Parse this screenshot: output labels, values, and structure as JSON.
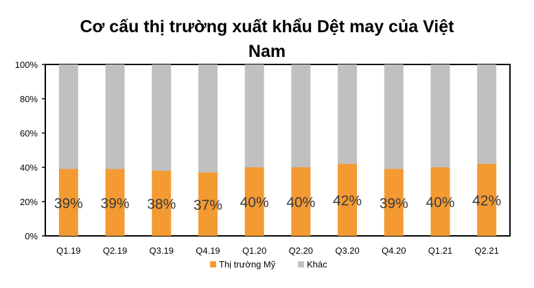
{
  "chart_data": {
    "type": "bar",
    "stacked": true,
    "percent_stacked": true,
    "title_line1": "Cơ cấu thị trường xuất khẩu Dệt may của Việt",
    "title_line2": "Nam",
    "categories": [
      "Q1.19",
      "Q2.19",
      "Q3.19",
      "Q4.19",
      "Q1.20",
      "Q2.20",
      "Q3.20",
      "Q4.20",
      "Q1.21",
      "Q2.21"
    ],
    "series": [
      {
        "name": "Thị trường Mỹ",
        "values": [
          39,
          39,
          38,
          37,
          40,
          40,
          42,
          39,
          40,
          42
        ],
        "color": "#f39a32"
      },
      {
        "name": "Khác",
        "values": [
          61,
          61,
          62,
          63,
          60,
          60,
          58,
          61,
          60,
          58
        ],
        "color": "#c0c0c0"
      }
    ],
    "data_labels": [
      "39%",
      "39%",
      "38%",
      "37%",
      "40%",
      "40%",
      "42%",
      "39%",
      "40%",
      "42%"
    ],
    "yticks": [
      "0%",
      "20%",
      "40%",
      "60%",
      "80%",
      "100%"
    ],
    "ylim": [
      0,
      100
    ],
    "grid": false,
    "legend_position": "bottom"
  }
}
